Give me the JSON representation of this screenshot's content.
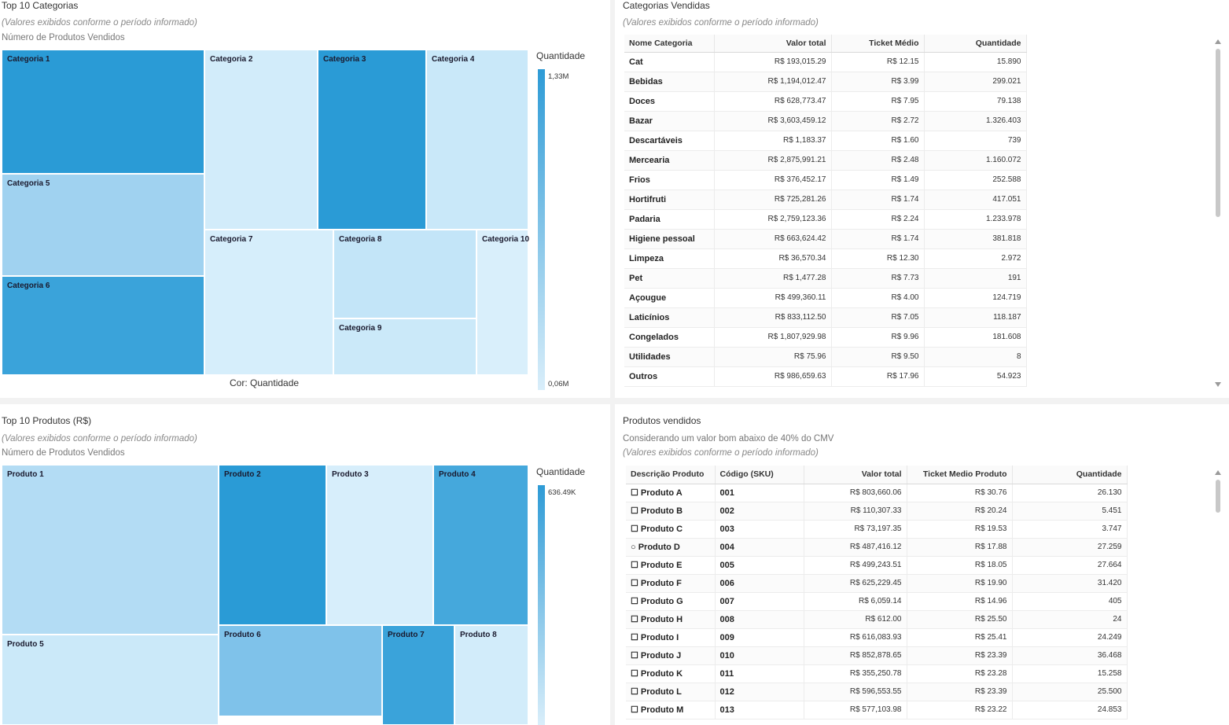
{
  "panels": {
    "top_categories": {
      "title": "Top 10 Categorias",
      "subtitle": "(Valores exibidos conforme o período informado)",
      "subtitle2": "Número de Produtos Vendidos",
      "legend_title": "Quantidade",
      "legend_max": "1,33M",
      "legend_min": "0,06M",
      "color_caption": "Cor: Quantidade",
      "tiles": [
        {
          "label": "Categoria 1",
          "color": "#2a9bd6"
        },
        {
          "label": "Categoria 2",
          "color": "#d2ecfa"
        },
        {
          "label": "Categoria 3",
          "color": "#2a9bd6"
        },
        {
          "label": "Categoria 4",
          "color": "#c9e8f9"
        },
        {
          "label": "Categoria 5",
          "color": "#a0d2f0"
        },
        {
          "label": "Categoria 6",
          "color": "#3aa3da"
        },
        {
          "label": "Categoria 7",
          "color": "#d6eefb"
        },
        {
          "label": "Categoria 8",
          "color": "#c3e5f8"
        },
        {
          "label": "Categoria 9",
          "color": "#cbe9f9"
        },
        {
          "label": "Categoria 10",
          "color": "#d9effb"
        }
      ]
    },
    "categories_sold": {
      "title": "Categorias Vendidas",
      "subtitle": "(Valores exibidos conforme o período informado)",
      "headers": [
        "Nome Categoria",
        "Valor total",
        "Ticket Médio",
        "Quantidade"
      ],
      "rows": [
        {
          "name": "Cat",
          "valor": "R$ 193,015.29",
          "ticket": "R$ 12.15",
          "qtd": "15.890"
        },
        {
          "name": "Bebidas",
          "valor": "R$ 1,194,012.47",
          "ticket": "R$ 3.99",
          "qtd": "299.021"
        },
        {
          "name": "Doces",
          "valor": "R$ 628,773.47",
          "ticket": "R$ 7.95",
          "qtd": "79.138"
        },
        {
          "name": "Bazar",
          "valor": "R$ 3,603,459.12",
          "ticket": "R$ 2.72",
          "qtd": "1.326.403"
        },
        {
          "name": "Descartáveis",
          "valor": "R$ 1,183.37",
          "ticket": "R$ 1.60",
          "qtd": "739"
        },
        {
          "name": "Mercearia",
          "valor": "R$ 2,875,991.21",
          "ticket": "R$ 2.48",
          "qtd": "1.160.072"
        },
        {
          "name": "Frios",
          "valor": "R$ 376,452.17",
          "ticket": "R$ 1.49",
          "qtd": "252.588"
        },
        {
          "name": "Hortifruti",
          "valor": "R$ 725,281.26",
          "ticket": "R$ 1.74",
          "qtd": "417.051"
        },
        {
          "name": "Padaria",
          "valor": "R$ 2,759,123.36",
          "ticket": "R$ 2.24",
          "qtd": "1.233.978"
        },
        {
          "name": "Higiene pessoal",
          "valor": "R$ 663,624.42",
          "ticket": "R$ 1.74",
          "qtd": "381.818"
        },
        {
          "name": "Limpeza",
          "valor": "R$ 36,570.34",
          "ticket": "R$ 12.30",
          "qtd": "2.972"
        },
        {
          "name": "Pet",
          "valor": "R$ 1,477.28",
          "ticket": "R$ 7.73",
          "qtd": "191"
        },
        {
          "name": "Açougue",
          "valor": "R$ 499,360.11",
          "ticket": "R$ 4.00",
          "qtd": "124.719"
        },
        {
          "name": "Laticínios",
          "valor": "R$ 833,112.50",
          "ticket": "R$ 7.05",
          "qtd": "118.187"
        },
        {
          "name": "Congelados",
          "valor": "R$ 1,807,929.98",
          "ticket": "R$ 9.96",
          "qtd": "181.608"
        },
        {
          "name": "Utilidades",
          "valor": "R$ 75.96",
          "ticket": "R$ 9.50",
          "qtd": "8"
        },
        {
          "name": "Outros",
          "valor": "R$ 986,659.63",
          "ticket": "R$ 17.96",
          "qtd": "54.923"
        }
      ]
    },
    "top_products": {
      "title": "Top 10 Produtos (R$)",
      "subtitle": "(Valores exibidos conforme o período informado)",
      "subtitle2": "Número de Produtos Vendidos",
      "legend_title": "Quantidade",
      "legend_max": "636.49K",
      "tiles": [
        {
          "label": "Produto 1",
          "color": "#b3dcf4"
        },
        {
          "label": "Produto 2",
          "color": "#2a9bd6"
        },
        {
          "label": "Produto 3",
          "color": "#d7eefb"
        },
        {
          "label": "Produto 4",
          "color": "#45a8dc"
        },
        {
          "label": "Produto 5",
          "color": "#cbe9f9"
        },
        {
          "label": "Produto 6",
          "color": "#7fc2ea"
        },
        {
          "label": "Produto 7",
          "color": "#3aa3da"
        },
        {
          "label": "Produto 8",
          "color": "#d2ecfa"
        }
      ]
    },
    "products": {
      "title": "Produtos vendidos",
      "subtitle": "Considerando um valor bom abaixo de 40% do CMV",
      "subtitle2": "(Valores exibidos conforme o período informado)",
      "headers": [
        "Descrição Produto",
        "Código (SKU)",
        "Valor total",
        "Ticket Medio Produto",
        "Quantidade"
      ],
      "rows": [
        {
          "name": "☐ Produto A",
          "sku": "001",
          "valor": "R$ 803,660.06",
          "ticket": "R$ 30.76",
          "qtd": "26.130"
        },
        {
          "name": "☐ Produto B",
          "sku": "002",
          "valor": "R$ 110,307.33",
          "ticket": "R$ 20.24",
          "qtd": "5.451"
        },
        {
          "name": "☐ Produto C",
          "sku": "003",
          "valor": "R$ 73,197.35",
          "ticket": "R$ 19.53",
          "qtd": "3.747"
        },
        {
          "name": "○ Produto D",
          "sku": "004",
          "valor": "R$ 487,416.12",
          "ticket": "R$ 17.88",
          "qtd": "27.259"
        },
        {
          "name": "☐ Produto E",
          "sku": "005",
          "valor": "R$ 499,243.51",
          "ticket": "R$ 18.05",
          "qtd": "27.664"
        },
        {
          "name": "☐ Produto F",
          "sku": "006",
          "valor": "R$ 625,229.45",
          "ticket": "R$ 19.90",
          "qtd": "31.420"
        },
        {
          "name": "☐ Produto G",
          "sku": "007",
          "valor": "R$ 6,059.14",
          "ticket": "R$ 14.96",
          "qtd": "405"
        },
        {
          "name": "☐ Produto H",
          "sku": "008",
          "valor": "R$ 612.00",
          "ticket": "R$ 25.50",
          "qtd": "24"
        },
        {
          "name": "☐ Produto I",
          "sku": "009",
          "valor": "R$ 616,083.93",
          "ticket": "R$ 25.41",
          "qtd": "24.249"
        },
        {
          "name": "☐ Produto J",
          "sku": "010",
          "valor": "R$ 852,878.65",
          "ticket": "R$ 23.39",
          "qtd": "36.468"
        },
        {
          "name": "☐ Produto K",
          "sku": "011",
          "valor": "R$ 355,250.78",
          "ticket": "R$ 23.28",
          "qtd": "15.258"
        },
        {
          "name": "☐ Produto L",
          "sku": "012",
          "valor": "R$ 596,553.55",
          "ticket": "R$ 23.39",
          "qtd": "25.500"
        },
        {
          "name": "☐ Produto M",
          "sku": "013",
          "valor": "R$ 577,103.98",
          "ticket": "R$ 23.22",
          "qtd": "24.853"
        }
      ]
    }
  }
}
